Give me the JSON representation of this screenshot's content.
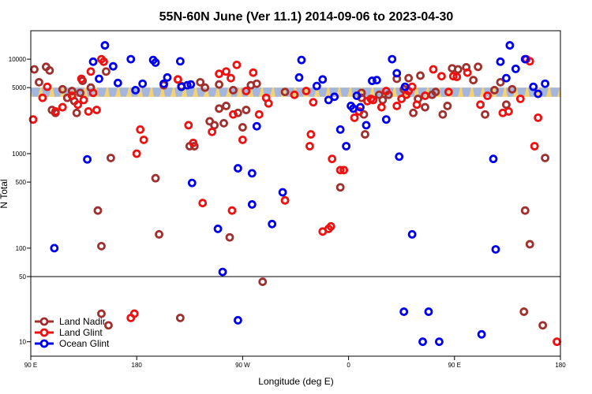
{
  "chart_data": {
    "type": "scatter",
    "title": "55N-60N June (Ver 11.1)   2014-09-06 to 2023-04-30",
    "xlabel": "Longitude (deg E)",
    "ylabel": "N Total",
    "x_ticks": [
      {
        "lon": 90,
        "label": "90 E"
      },
      {
        "lon": 180,
        "label": "180"
      },
      {
        "lon": 270,
        "label": "90 W"
      },
      {
        "lon": 360,
        "label": "0"
      },
      {
        "lon": 450,
        "label": "90 E"
      },
      {
        "lon": 540,
        "label": "180"
      }
    ],
    "xlim": [
      90,
      540
    ],
    "y_scale": "log",
    "upper_panel": {
      "ylim": [
        50,
        20000
      ],
      "ticks": [
        {
          "value": 50,
          "label": "50"
        },
        {
          "value": 100,
          "label": "100"
        },
        {
          "value": 500,
          "label": "500"
        },
        {
          "value": 1000,
          "label": "1000"
        },
        {
          "value": 5000,
          "label": "5000"
        },
        {
          "value": 10000,
          "label": "10000"
        }
      ]
    },
    "lower_panel": {
      "ylim": [
        7,
        50
      ],
      "ticks": [
        {
          "value": 10,
          "label": "10"
        }
      ]
    },
    "band": {
      "y_range": [
        4000,
        5000
      ],
      "colors": [
        "#f7d070",
        "#a3b6dd"
      ]
    },
    "legend": {
      "position": "bottom-left"
    },
    "series": [
      {
        "name": "Land Nadir",
        "color": "#a0302e",
        "points": [
          [
            93,
            7800
          ],
          [
            97,
            5700
          ],
          [
            103,
            8300
          ],
          [
            106,
            7600
          ],
          [
            108,
            2900
          ],
          [
            111,
            2700
          ],
          [
            117,
            4800
          ],
          [
            121,
            3900
          ],
          [
            125,
            4600
          ],
          [
            127,
            3600
          ],
          [
            129,
            2700
          ],
          [
            132,
            4400
          ],
          [
            134,
            5900
          ],
          [
            141,
            5000
          ],
          [
            147,
            250
          ],
          [
            150,
            105
          ],
          [
            154,
            7400
          ],
          [
            158,
            900
          ],
          [
            196,
            550
          ],
          [
            199,
            140
          ],
          [
            203,
            5300
          ],
          [
            215,
            6100
          ],
          [
            218,
            5200
          ],
          [
            225,
            1200
          ],
          [
            229,
            1200
          ],
          [
            234,
            5700
          ],
          [
            238,
            5000
          ],
          [
            242,
            2200
          ],
          [
            246,
            2000
          ],
          [
            250,
            5400
          ],
          [
            250,
            3000
          ],
          [
            254,
            2100
          ],
          [
            256,
            3200
          ],
          [
            259,
            130
          ],
          [
            262,
            4700
          ],
          [
            266,
            2700
          ],
          [
            270,
            1900
          ],
          [
            273,
            2900
          ],
          [
            277,
            5300
          ],
          [
            282,
            5500
          ],
          [
            287,
            44
          ],
          [
            306,
            4500
          ],
          [
            353,
            440
          ],
          [
            371,
            4400
          ],
          [
            371,
            3900
          ],
          [
            373,
            2600
          ],
          [
            374,
            1600
          ],
          [
            386,
            4200
          ],
          [
            389,
            3700
          ],
          [
            394,
            4200
          ],
          [
            401,
            6200
          ],
          [
            407,
            4800
          ],
          [
            411,
            6300
          ],
          [
            415,
            2700
          ],
          [
            419,
            3800
          ],
          [
            421,
            6700
          ],
          [
            425,
            3100
          ],
          [
            431,
            4200
          ],
          [
            434,
            4500
          ],
          [
            440,
            2600
          ],
          [
            444,
            3200
          ],
          [
            448,
            8000
          ],
          [
            453,
            7800
          ],
          [
            460,
            8200
          ],
          [
            466,
            6000
          ],
          [
            470,
            8300
          ],
          [
            476,
            2600
          ],
          [
            484,
            4700
          ],
          [
            489,
            5700
          ],
          [
            494,
            3300
          ],
          [
            499,
            4800
          ],
          [
            509,
            21
          ],
          [
            510,
            250
          ],
          [
            514,
            110
          ],
          [
            525,
            15
          ],
          [
            527,
            900
          ],
          [
            150,
            20
          ],
          [
            156,
            15
          ],
          [
            217,
            18
          ]
        ]
      },
      {
        "name": "Land Glint",
        "color": "#ee1111",
        "points": [
          [
            92,
            2300
          ],
          [
            100,
            3900
          ],
          [
            104,
            5100
          ],
          [
            111,
            2800
          ],
          [
            117,
            3100
          ],
          [
            125,
            4100
          ],
          [
            130,
            3300
          ],
          [
            133,
            6200
          ],
          [
            135,
            3700
          ],
          [
            139,
            2800
          ],
          [
            141,
            7400
          ],
          [
            143,
            4400
          ],
          [
            146,
            2900
          ],
          [
            150,
            10000
          ],
          [
            152,
            9400
          ],
          [
            180,
            1000
          ],
          [
            183,
            1800
          ],
          [
            186,
            1400
          ],
          [
            215,
            6100
          ],
          [
            224,
            2000
          ],
          [
            228,
            1300
          ],
          [
            236,
            300
          ],
          [
            244,
            1700
          ],
          [
            250,
            7000
          ],
          [
            256,
            7400
          ],
          [
            260,
            6300
          ],
          [
            261,
            250
          ],
          [
            262,
            2600
          ],
          [
            265,
            8700
          ],
          [
            270,
            1400
          ],
          [
            273,
            4600
          ],
          [
            279,
            7200
          ],
          [
            284,
            2600
          ],
          [
            290,
            3900
          ],
          [
            292,
            3400
          ],
          [
            306,
            320
          ],
          [
            314,
            4200
          ],
          [
            324,
            4600
          ],
          [
            327,
            1200
          ],
          [
            328,
            1600
          ],
          [
            330,
            3500
          ],
          [
            338,
            150
          ],
          [
            343,
            160
          ],
          [
            345,
            170
          ],
          [
            346,
            880
          ],
          [
            353,
            670
          ],
          [
            356,
            670
          ],
          [
            365,
            2400
          ],
          [
            369,
            2800
          ],
          [
            376,
            3600
          ],
          [
            379,
            3800
          ],
          [
            381,
            3700
          ],
          [
            388,
            3100
          ],
          [
            392,
            4600
          ],
          [
            401,
            3200
          ],
          [
            405,
            3800
          ],
          [
            409,
            4200
          ],
          [
            411,
            4600
          ],
          [
            414,
            5100
          ],
          [
            418,
            3300
          ],
          [
            425,
            4100
          ],
          [
            432,
            7800
          ],
          [
            439,
            6600
          ],
          [
            445,
            4500
          ],
          [
            449,
            6600
          ],
          [
            452,
            6500
          ],
          [
            461,
            7200
          ],
          [
            472,
            3300
          ],
          [
            478,
            4100
          ],
          [
            491,
            2700
          ],
          [
            496,
            2800
          ],
          [
            506,
            3800
          ],
          [
            511,
            10000
          ],
          [
            514,
            9500
          ],
          [
            518,
            1200
          ],
          [
            521,
            2400
          ],
          [
            537,
            10
          ],
          [
            178,
            20
          ],
          [
            175,
            18
          ]
        ]
      },
      {
        "name": "Ocean Glint",
        "color": "#0000ee",
        "points": [
          [
            110,
            100
          ],
          [
            138,
            870
          ],
          [
            143,
            9400
          ],
          [
            148,
            6200
          ],
          [
            153,
            14000
          ],
          [
            160,
            8400
          ],
          [
            164,
            5600
          ],
          [
            175,
            10000
          ],
          [
            179,
            4700
          ],
          [
            185,
            5500
          ],
          [
            194,
            9800
          ],
          [
            196,
            9200
          ],
          [
            203,
            5500
          ],
          [
            206,
            6400
          ],
          [
            217,
            9500
          ],
          [
            218,
            5100
          ],
          [
            223,
            5300
          ],
          [
            226,
            5400
          ],
          [
            227,
            490
          ],
          [
            249,
            160
          ],
          [
            253,
            56
          ],
          [
            266,
            700
          ],
          [
            266,
            17
          ],
          [
            278,
            620
          ],
          [
            278,
            290
          ],
          [
            282,
            1950
          ],
          [
            295,
            180
          ],
          [
            304,
            390
          ],
          [
            318,
            6400
          ],
          [
            320,
            9800
          ],
          [
            333,
            5200
          ],
          [
            338,
            6100
          ],
          [
            343,
            3700
          ],
          [
            348,
            4000
          ],
          [
            353,
            1800
          ],
          [
            358,
            1200
          ],
          [
            362,
            3200
          ],
          [
            364,
            3000
          ],
          [
            367,
            4100
          ],
          [
            370,
            3100
          ],
          [
            375,
            2000
          ],
          [
            380,
            5900
          ],
          [
            384,
            6000
          ],
          [
            392,
            2300
          ],
          [
            397,
            10000
          ],
          [
            401,
            7100
          ],
          [
            403,
            930
          ],
          [
            407,
            21
          ],
          [
            408,
            5100
          ],
          [
            414,
            140
          ],
          [
            423,
            10
          ],
          [
            428,
            21
          ],
          [
            437,
            10
          ],
          [
            473,
            12
          ],
          [
            483,
            880
          ],
          [
            485,
            97
          ],
          [
            489,
            9400
          ],
          [
            494,
            6300
          ],
          [
            497,
            14000
          ],
          [
            502,
            7900
          ],
          [
            510,
            10000
          ],
          [
            517,
            5100
          ],
          [
            521,
            4300
          ],
          [
            527,
            5500
          ]
        ]
      }
    ]
  }
}
